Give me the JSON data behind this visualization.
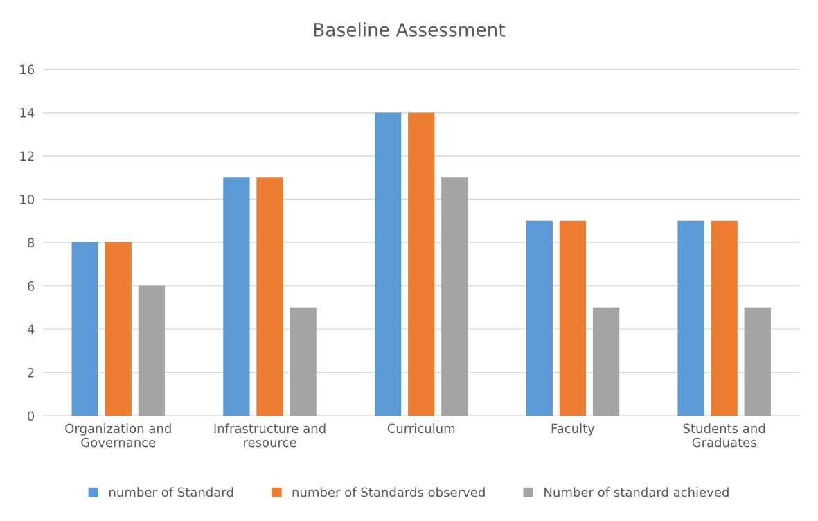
{
  "chart_data": {
    "type": "bar",
    "title": "Baseline Assessment",
    "categories": [
      "Organization and\nGovernance",
      "Infrastructure and\nresource",
      "Curriculum",
      "Faculty",
      "Students and\nGraduates"
    ],
    "series": [
      {
        "name": "number of Standard",
        "color": "#5b9bd5",
        "values": [
          8,
          11,
          14,
          9,
          9
        ]
      },
      {
        "name": "number of Standards observed",
        "color": "#ed7d31",
        "values": [
          8,
          11,
          14,
          9,
          9
        ]
      },
      {
        "name": "Number of standard achieved",
        "color": "#a5a5a5",
        "values": [
          6,
          5,
          11,
          5,
          5
        ]
      }
    ],
    "ylim": [
      0,
      16
    ],
    "yticks": [
      0,
      2,
      4,
      6,
      8,
      10,
      12,
      14,
      16
    ],
    "grid": "y",
    "legend": "bottom"
  }
}
